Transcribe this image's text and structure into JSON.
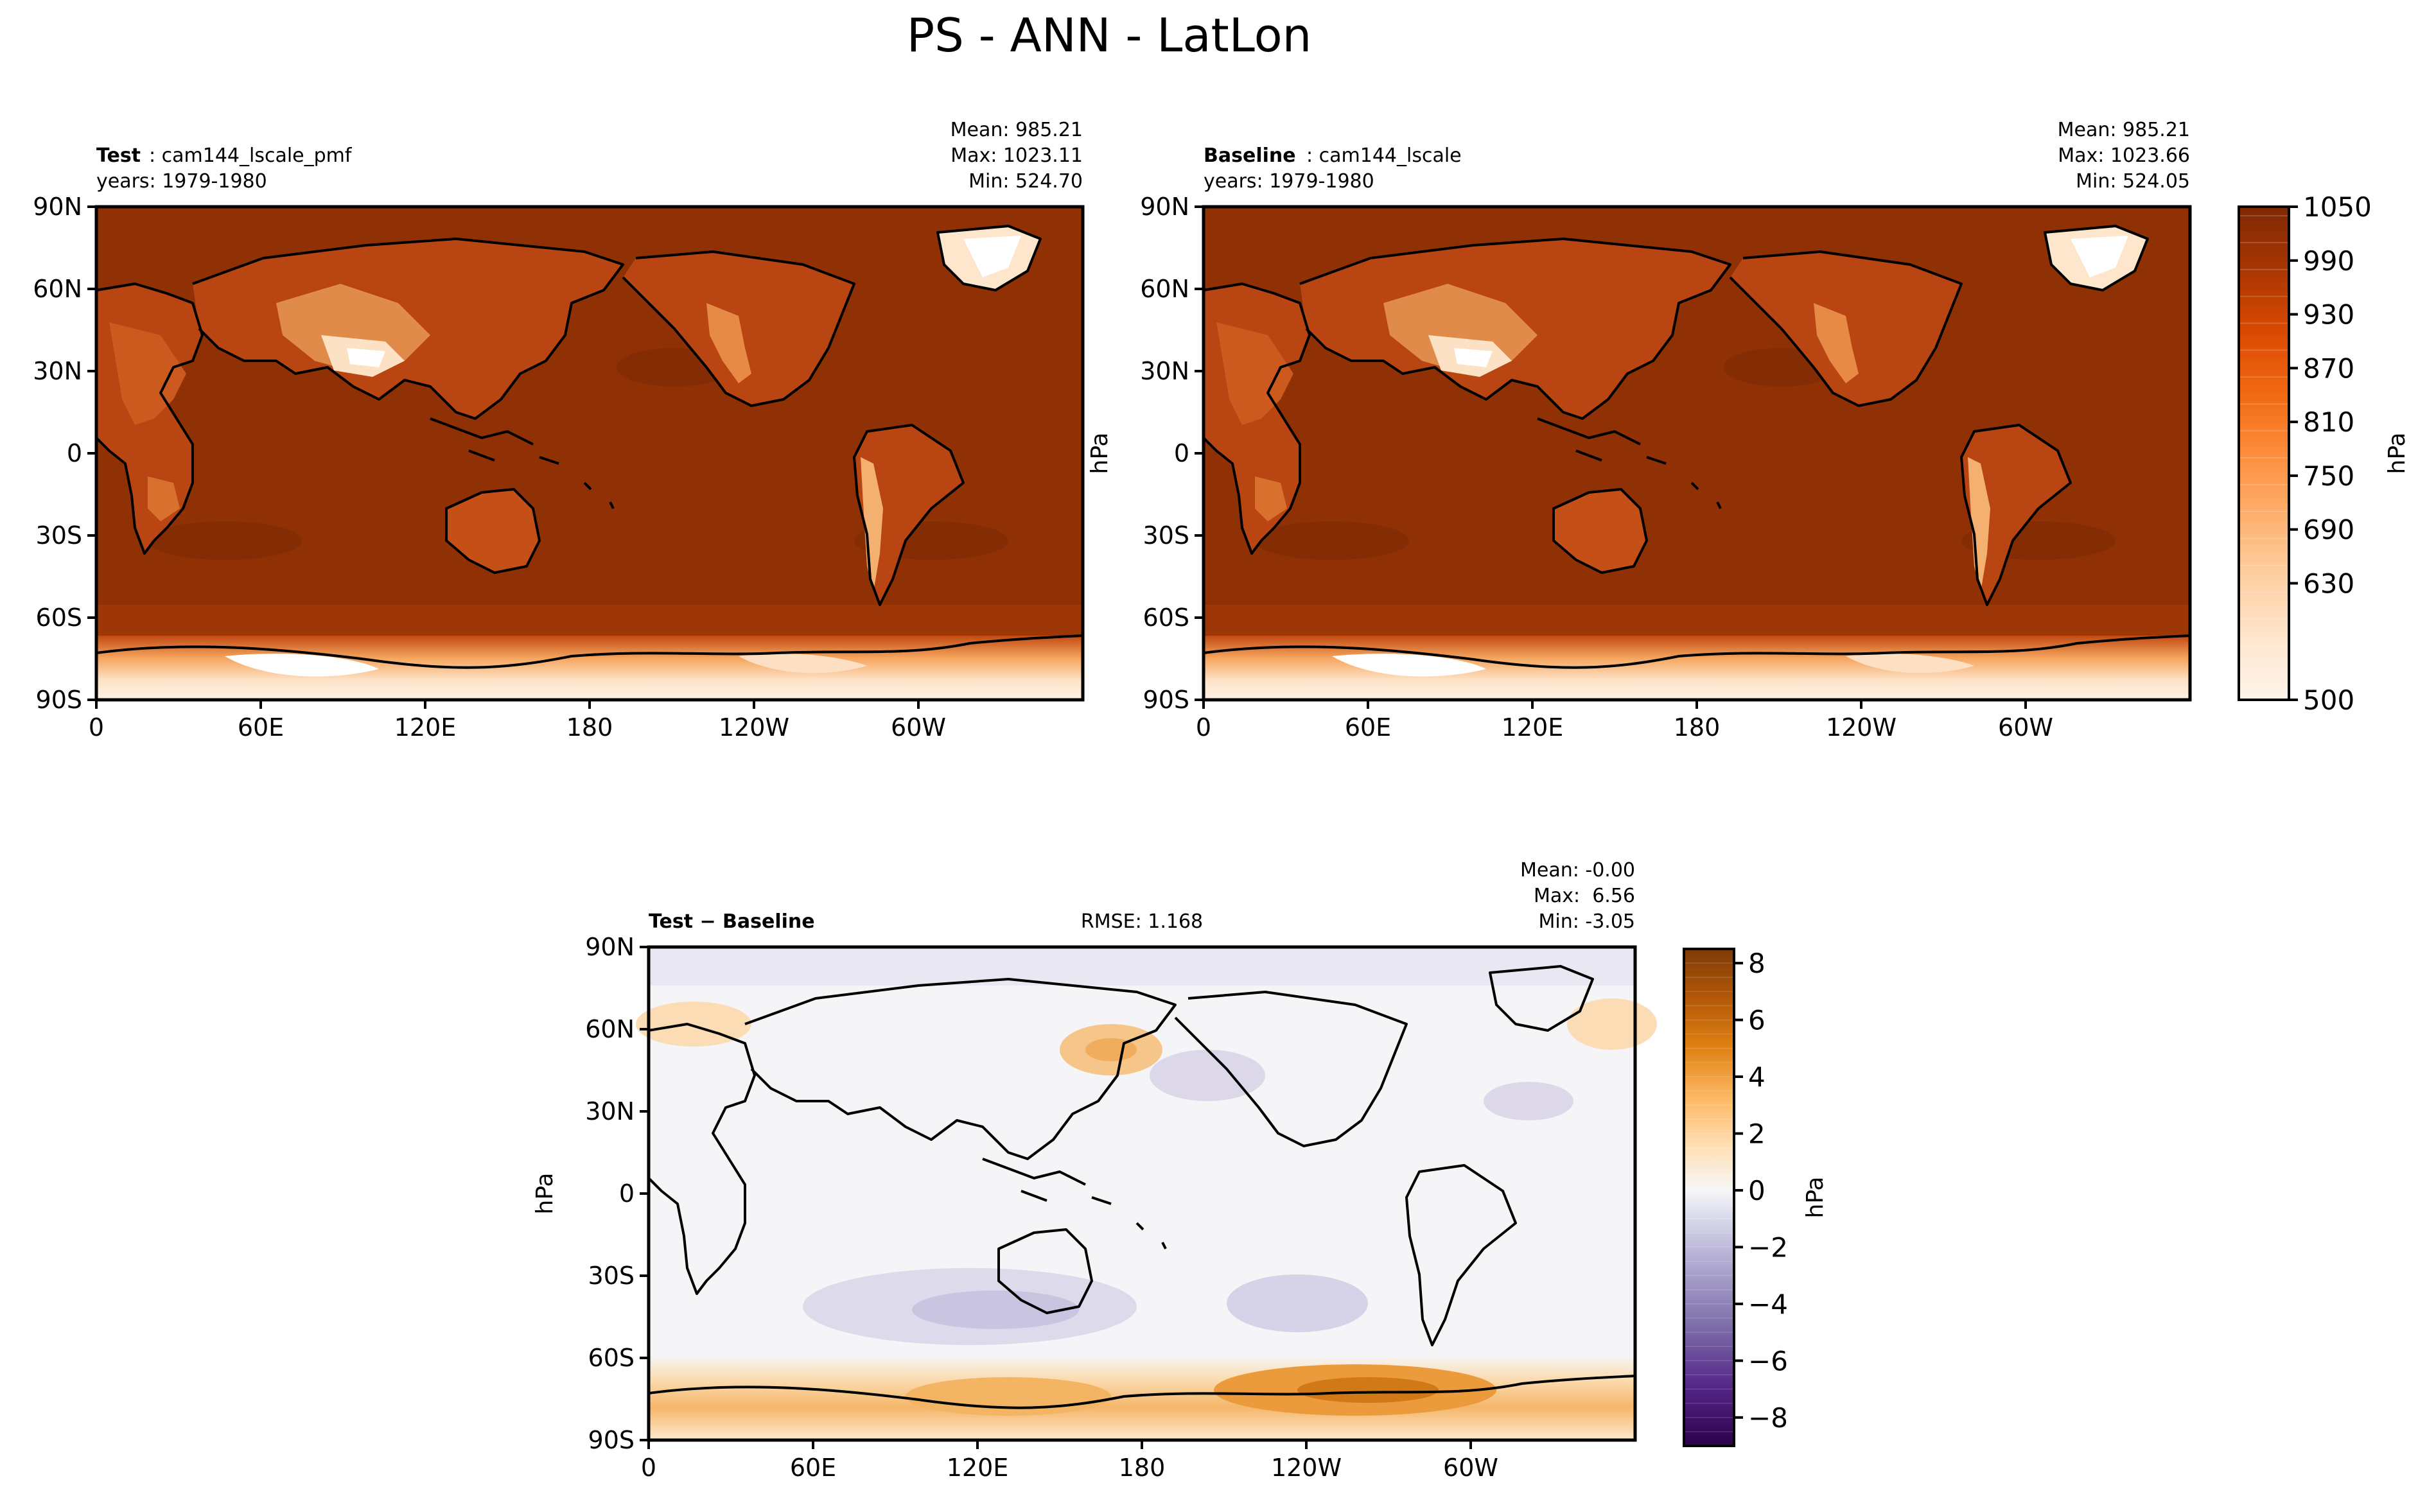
{
  "figure": {
    "title": "PS - ANN - LatLon"
  },
  "panels": {
    "test": {
      "label_bold": "Test",
      "label_rest": ": cam144_lscale_pmf",
      "years": "years: 1979-1980",
      "mean": "Mean: 985.21",
      "max": "Max: 1023.11",
      "min": "Min: 524.70"
    },
    "baseline": {
      "label_bold": "Baseline",
      "label_rest": ": cam144_lscale",
      "years": "years: 1979-1980",
      "mean": "Mean: 985.21",
      "max": "Max: 1023.66",
      "min": "Min: 524.05",
      "ylabel": "hPa"
    },
    "diff": {
      "label_bold": "Test − Baseline",
      "rmse": "RMSE: 1.168",
      "mean": "Mean: -0.00",
      "max": "Max:  6.56",
      "min": "Min: -3.05",
      "ylabel": "hPa"
    }
  },
  "axes": {
    "lat_ticks": [
      "90N",
      "60N",
      "30N",
      "0",
      "30S",
      "60S",
      "90S"
    ],
    "lon_ticks": [
      "0",
      "60E",
      "120E",
      "180",
      "120W",
      "60W"
    ]
  },
  "colorbar_top": {
    "label": "hPa",
    "ticks": [
      "1050",
      "990",
      "930",
      "870",
      "810",
      "750",
      "690",
      "630",
      "500"
    ],
    "colormap": [
      "#fff5eb",
      "#fee6ce",
      "#fdd0a2",
      "#fdae6b",
      "#fd8d3c",
      "#f16913",
      "#d94801",
      "#a63603",
      "#7f2704"
    ]
  },
  "colorbar_diff": {
    "label": "hPa",
    "ticks": [
      "8",
      "6",
      "4",
      "2",
      "0",
      "−2",
      "−4",
      "−6",
      "−8"
    ],
    "colormap_positive": [
      "#f7f7f7",
      "#fee0b6",
      "#fdb863",
      "#e08214",
      "#b35806",
      "#7f3b08"
    ],
    "colormap_negative": [
      "#f7f7f7",
      "#d8daeb",
      "#b2abd2",
      "#8073ac",
      "#542788",
      "#2d004b"
    ]
  },
  "chart_data": [
    {
      "type": "heatmap",
      "title": "Test: cam144_lscale_pmf",
      "variable": "PS",
      "units": "hPa",
      "xlim": [
        0,
        360
      ],
      "ylim": [
        -90,
        90
      ],
      "x_ticks": [
        "0",
        "60E",
        "120E",
        "180",
        "120W",
        "60W"
      ],
      "y_ticks": [
        "90N",
        "60N",
        "30N",
        "0",
        "30S",
        "60S",
        "90S"
      ],
      "color_range": [
        500,
        1050
      ],
      "stats": {
        "mean": 985.21,
        "max": 1023.11,
        "min": 524.7
      }
    },
    {
      "type": "heatmap",
      "title": "Baseline: cam144_lscale",
      "variable": "PS",
      "units": "hPa",
      "xlim": [
        0,
        360
      ],
      "ylim": [
        -90,
        90
      ],
      "x_ticks": [
        "0",
        "60E",
        "120E",
        "180",
        "120W",
        "60W"
      ],
      "y_ticks": [
        "90N",
        "60N",
        "30N",
        "0",
        "30S",
        "60S",
        "90S"
      ],
      "color_range": [
        500,
        1050
      ],
      "stats": {
        "mean": 985.21,
        "max": 1023.66,
        "min": 524.05
      }
    },
    {
      "type": "heatmap",
      "title": "Test − Baseline",
      "variable": "PS",
      "units": "hPa",
      "xlim": [
        0,
        360
      ],
      "ylim": [
        -90,
        90
      ],
      "x_ticks": [
        "0",
        "60E",
        "120E",
        "180",
        "120W",
        "60W"
      ],
      "y_ticks": [
        "90N",
        "60N",
        "30N",
        "0",
        "30S",
        "60S",
        "90S"
      ],
      "color_range": [
        -9,
        8.5
      ],
      "stats": {
        "mean": -0.0,
        "max": 6.56,
        "min": -3.05,
        "rmse": 1.168
      }
    }
  ]
}
